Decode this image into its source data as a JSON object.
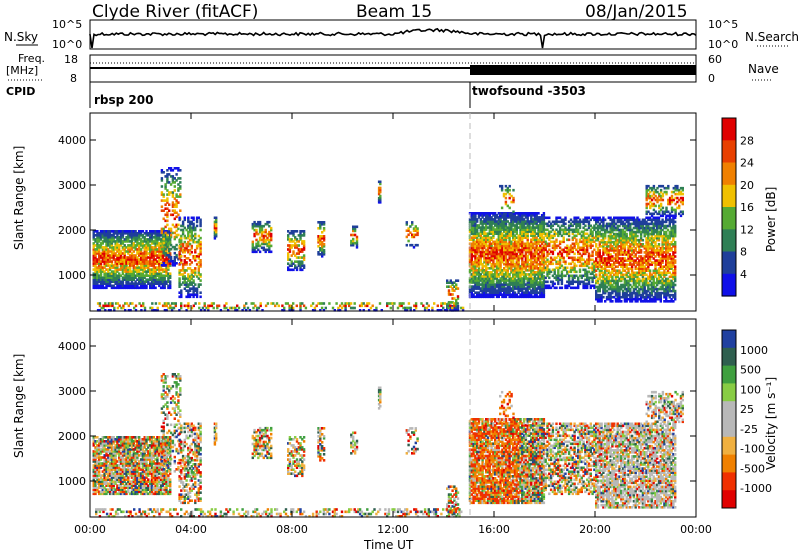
{
  "header": {
    "station": "Clyde River (fitACF)",
    "beam": "Beam 15",
    "date": "08/Jan/2015"
  },
  "summary": {
    "nsky_label": "N.Sky",
    "nsky_top": "10^5",
    "nsky_bottom": "10^0",
    "nsearch_label": "N.Search",
    "nsearch_top": "10^5",
    "nsearch_bottom": "10^0",
    "freq_label": "Freq.",
    "freq_unit": "[MHz]",
    "freq_top": "18",
    "freq_bottom": "8",
    "nave_label": "Nave",
    "nave_top": "60",
    "nave_bottom": "0",
    "cpid_label": "CPID",
    "cpid_mode_1": "rbsp 200",
    "cpid_mode_2": "twofsound -3503"
  },
  "colors": {
    "power_scale": [
      "#1010e8",
      "#1f3f9a",
      "#2f7f55",
      "#55aa33",
      "#f0c000",
      "#f08000",
      "#e84000",
      "#e00000"
    ],
    "velocity_scale": [
      "#e00000",
      "#f03000",
      "#f08000",
      "#f0b040",
      "#b8b8b8",
      "#b8b8b8",
      "#88cc44",
      "#3f9f3f",
      "#2f5f4f",
      "#2040a0"
    ]
  },
  "chart_data": [
    {
      "type": "heatmap",
      "name": "Power",
      "ylabel": "Slant Range [km]",
      "xlabel": "Time UT",
      "xticks": [
        "00:00",
        "04:00",
        "08:00",
        "12:00",
        "16:00",
        "20:00",
        "00:00"
      ],
      "yticks": [
        1000,
        2000,
        3000,
        4000
      ],
      "ylim": [
        200,
        4600
      ],
      "xlim_hours": [
        0,
        24
      ],
      "colorbar_label": "Power [dB]",
      "colorbar_ticks": [
        "28",
        "24",
        "20",
        "16",
        "12",
        "8",
        "4"
      ],
      "mode_change_hour": 15.1
    },
    {
      "type": "heatmap",
      "name": "Velocity",
      "ylabel": "Slant Range [km]",
      "xlabel": "Time UT",
      "xticks": [
        "00:00",
        "04:00",
        "08:00",
        "12:00",
        "16:00",
        "20:00",
        "00:00"
      ],
      "yticks": [
        1000,
        2000,
        3000,
        4000
      ],
      "ylim": [
        200,
        4600
      ],
      "xlim_hours": [
        0,
        24
      ],
      "colorbar_label": "Velocity [m s⁻¹]",
      "colorbar_ticks": [
        "1000",
        "500",
        "100",
        "25",
        "-25",
        "-100",
        "-500",
        "-1000"
      ],
      "mode_change_hour": 15.1
    }
  ]
}
